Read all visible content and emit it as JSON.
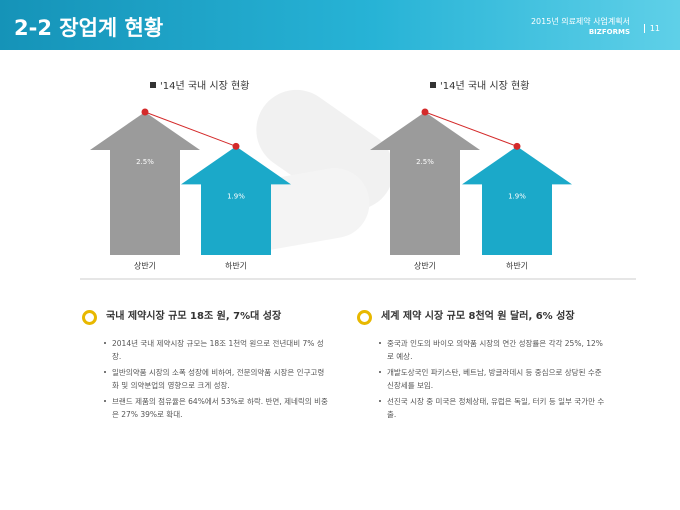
{
  "header": {
    "title": "2-2 장업계 현황",
    "doc_title": "2015년 의료제약 사업계획서",
    "brand": "BIZFORMS",
    "page": "11"
  },
  "chart_data": [
    {
      "type": "arrow",
      "title": "'14년 국내 시장 현황",
      "categories": [
        "상반기",
        "하반기"
      ],
      "values": [
        2.5,
        1.9
      ],
      "value_labels": [
        "2.5%",
        "1.9%"
      ],
      "colors": [
        "#9b9b9b",
        "#1ba9c9"
      ],
      "marker_color": "#d42a2a"
    },
    {
      "type": "arrow",
      "title": "'14년 국내 시장 현황",
      "categories": [
        "상반기",
        "하반기"
      ],
      "values": [
        2.5,
        1.9
      ],
      "value_labels": [
        "2.5%",
        "1.9%"
      ],
      "colors": [
        "#9b9b9b",
        "#1ba9c9"
      ],
      "marker_color": "#d42a2a"
    }
  ],
  "sections": [
    {
      "heading": "국내 제약시장 규모 18조 원, 7%대 성장",
      "bullets": [
        "2014년 국내 제약시장 규모는 18조 1천억 원으로 전년대비 7% 성장.",
        "일반의약품 시장의 소폭 성장에 비하여, 전문의약품 시장은 인구고령화 및 의약분업의 영향으로 크게 성장.",
        "브랜드 제품의 점유율은 64%에서 53%로 하락. 반면, 제네릭의 비중은 27% 39%로 확대."
      ]
    },
    {
      "heading": "세계 제약 시장 규모 8천억 원 달러, 6% 성장",
      "bullets": [
        "중국과 인도의 바이오 의약품 시장의 연간 성장률은 각각 25%, 12%로 예상.",
        "개발도상국인 파키스탄, 베트남, 방글라데시 등 중심으로 상당된 수준 신장세를 보임.",
        "선진국 시장 중 미국은 정체상태, 유럽은 독일, 터키 등 일부 국가만 수출."
      ]
    }
  ]
}
